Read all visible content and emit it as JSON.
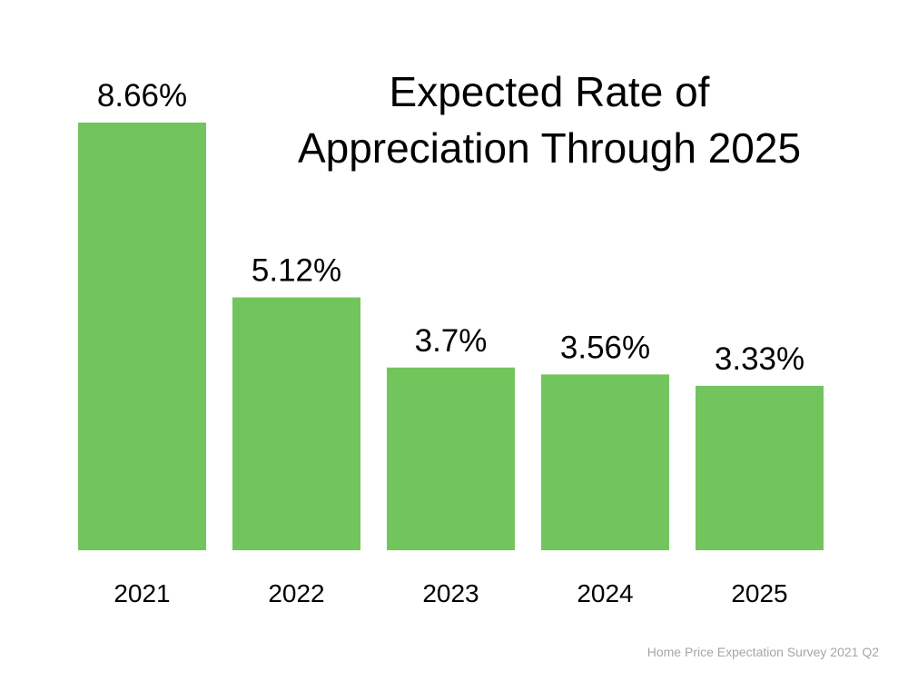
{
  "chart_data": {
    "type": "bar",
    "title_lines": [
      "Expected Rate of",
      "Appreciation Through 2025"
    ],
    "categories": [
      "2021",
      "2022",
      "2023",
      "2024",
      "2025"
    ],
    "values": [
      8.66,
      5.12,
      3.7,
      3.56,
      3.33
    ],
    "data_labels": [
      "8.66%",
      "5.12%",
      "3.7%",
      "3.56%",
      "3.33%"
    ],
    "xlabel": "",
    "ylabel": "",
    "ylim": [
      0,
      8.66
    ],
    "grid": false,
    "legend": "none",
    "bar_color": "#72c55c"
  },
  "footer": {
    "source": "Home Price Expectation Survey 2021 Q2"
  }
}
